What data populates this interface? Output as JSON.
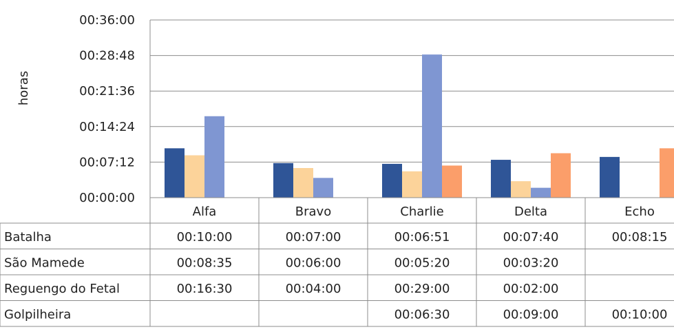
{
  "chart_data": {
    "type": "bar",
    "ylabel": "horas",
    "y_ticks": [
      "00:00:00",
      "00:07:12",
      "00:14:24",
      "00:21:36",
      "00:28:48",
      "00:36:00"
    ],
    "ylim_minutes": [
      0,
      36
    ],
    "categories": [
      "Alfa",
      "Bravo",
      "Charlie",
      "Delta",
      "Echo"
    ],
    "grid": true,
    "legend": "data table",
    "series": [
      {
        "name": "Batalha",
        "color": "#2f5597",
        "values_minutes": [
          10,
          7,
          6.85,
          7.667,
          8.25
        ],
        "labels": [
          "00:10:00",
          "00:07:00",
          "00:06:51",
          "00:07:40",
          "00:08:15"
        ]
      },
      {
        "name": "São Mamede",
        "color": "#fcd39a",
        "values_minutes": [
          8.583,
          6,
          5.333,
          3.333,
          null
        ],
        "labels": [
          "00:08:35",
          "00:06:00",
          "00:05:20",
          "00:03:20",
          ""
        ]
      },
      {
        "name": "Reguengo do Fetal",
        "color": "#7f96d2",
        "values_minutes": [
          16.5,
          4,
          29,
          2,
          null
        ],
        "labels": [
          "00:16:30",
          "00:04:00",
          "00:29:00",
          "00:02:00",
          ""
        ]
      },
      {
        "name": "Golpilheira",
        "color": "#fb9e6a",
        "values_minutes": [
          null,
          null,
          6.5,
          9,
          10
        ],
        "labels": [
          "",
          "",
          "00:06:30",
          "00:09:00",
          "00:10:00"
        ]
      }
    ]
  }
}
